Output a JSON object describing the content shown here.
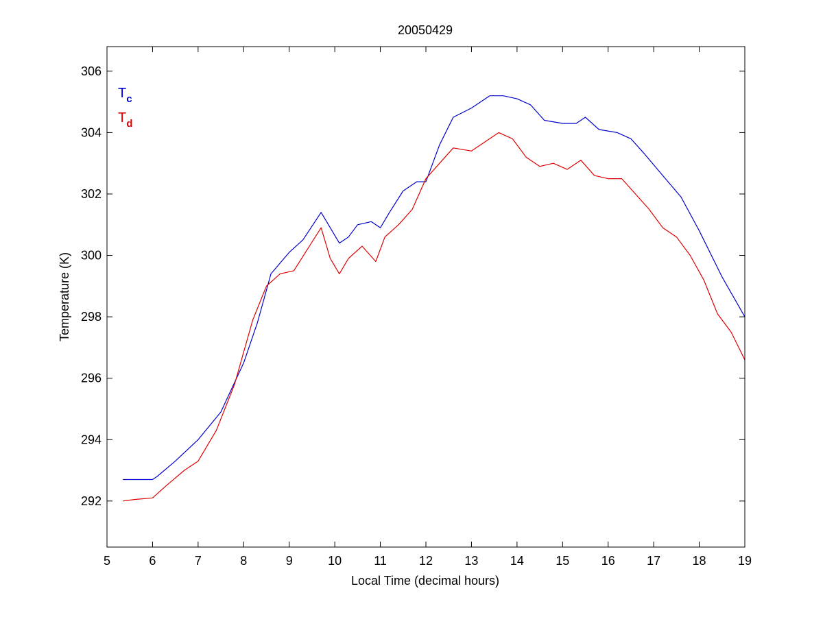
{
  "chart_data": {
    "type": "line",
    "title": "20050429",
    "xlabel": "Local Time (decimal hours)",
    "ylabel": "Temperature (K)",
    "xlim": [
      5,
      19
    ],
    "ylim": [
      290.5,
      306.8
    ],
    "xticks": [
      5,
      6,
      7,
      8,
      9,
      10,
      11,
      12,
      13,
      14,
      15,
      16,
      17,
      18,
      19
    ],
    "yticks": [
      292,
      294,
      296,
      298,
      300,
      302,
      304,
      306
    ],
    "grid": false,
    "legend_position": "top-left",
    "legend": [
      {
        "base": "T",
        "subscript": "c",
        "color": "#0000cc"
      },
      {
        "base": "T",
        "subscript": "d",
        "color": "#dd0000"
      }
    ],
    "series": [
      {
        "color": "#0000cc",
        "x": [
          5.35,
          6.0,
          6.1,
          6.5,
          7.0,
          7.5,
          8.0,
          8.3,
          8.6,
          9.0,
          9.3,
          9.7,
          10.1,
          10.3,
          10.5,
          10.8,
          11.0,
          11.2,
          11.5,
          11.8,
          12.0,
          12.3,
          12.6,
          13.0,
          13.4,
          13.7,
          14.0,
          14.3,
          14.6,
          15.0,
          15.3,
          15.5,
          15.8,
          16.2,
          16.5,
          16.8,
          17.2,
          17.6,
          18.0,
          18.5,
          19.0
        ],
        "y": [
          292.7,
          292.7,
          292.8,
          293.3,
          294.0,
          294.9,
          296.5,
          297.8,
          299.4,
          300.1,
          300.5,
          301.4,
          300.4,
          300.6,
          301.0,
          301.1,
          300.9,
          301.4,
          302.1,
          302.4,
          302.4,
          303.6,
          304.5,
          304.8,
          305.2,
          305.2,
          305.1,
          304.9,
          304.4,
          304.3,
          304.3,
          304.5,
          304.1,
          304.0,
          303.8,
          303.3,
          302.6,
          301.9,
          300.8,
          299.3,
          298.0
        ]
      },
      {
        "color": "#dd0000",
        "x": [
          5.35,
          5.6,
          6.0,
          6.3,
          6.7,
          7.0,
          7.4,
          7.8,
          8.2,
          8.5,
          8.8,
          9.1,
          9.4,
          9.7,
          9.9,
          10.1,
          10.3,
          10.6,
          10.9,
          11.1,
          11.4,
          11.7,
          12.0,
          12.3,
          12.6,
          13.0,
          13.3,
          13.6,
          13.9,
          14.2,
          14.5,
          14.8,
          15.1,
          15.4,
          15.7,
          16.0,
          16.3,
          16.6,
          16.9,
          17.2,
          17.5,
          17.8,
          18.1,
          18.4,
          18.7,
          19.0
        ],
        "y": [
          292.0,
          292.05,
          292.1,
          292.5,
          293.0,
          293.3,
          294.3,
          295.8,
          297.9,
          299.0,
          299.4,
          299.5,
          300.2,
          300.9,
          299.9,
          299.4,
          299.9,
          300.3,
          299.8,
          300.6,
          301.0,
          301.5,
          302.5,
          303.0,
          303.5,
          303.4,
          303.7,
          304.0,
          303.8,
          303.2,
          302.9,
          303.0,
          302.8,
          303.1,
          302.6,
          302.5,
          302.5,
          302.0,
          301.5,
          300.9,
          300.6,
          300.0,
          299.2,
          298.1,
          297.5,
          296.6
        ]
      }
    ]
  }
}
